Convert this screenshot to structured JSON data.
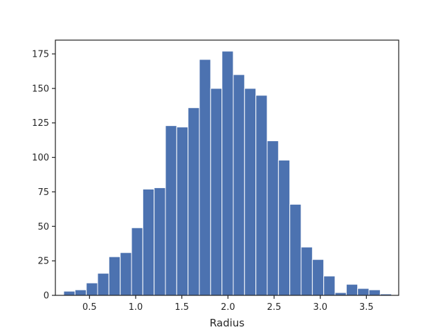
{
  "chart_data": {
    "type": "histogram",
    "title": "",
    "xlabel": "Radius",
    "ylabel": "",
    "xlim": [
      0.13,
      3.85
    ],
    "ylim": [
      0,
      185
    ],
    "grid": false,
    "legend": "none",
    "bar_color": "#4c72b0",
    "bin_edges": [
      0.22,
      0.3425,
      0.465,
      0.5875,
      0.71,
      0.8325,
      0.955,
      1.0775,
      1.2,
      1.3225,
      1.445,
      1.5675,
      1.69,
      1.8125,
      1.935,
      2.0575,
      2.18,
      2.3025,
      2.425,
      2.5475,
      2.67,
      2.7925,
      2.915,
      3.0375,
      3.16,
      3.2825,
      3.405,
      3.5275,
      3.65,
      3.7725
    ],
    "counts": [
      3,
      4,
      9,
      16,
      28,
      31,
      49,
      77,
      78,
      123,
      122,
      136,
      171,
      150,
      177,
      160,
      150,
      145,
      112,
      98,
      66,
      35,
      26,
      14,
      2,
      8,
      5,
      4,
      1
    ],
    "xticks": [
      0.5,
      1.0,
      1.5,
      2.0,
      2.5,
      3.0,
      3.5
    ],
    "xtick_labels": [
      "0.5",
      "1.0",
      "1.5",
      "2.0",
      "2.5",
      "3.0",
      "3.5"
    ],
    "yticks": [
      0,
      25,
      50,
      75,
      100,
      125,
      150,
      175
    ],
    "ytick_labels": [
      "0",
      "25",
      "50",
      "75",
      "100",
      "125",
      "150",
      "175"
    ]
  }
}
